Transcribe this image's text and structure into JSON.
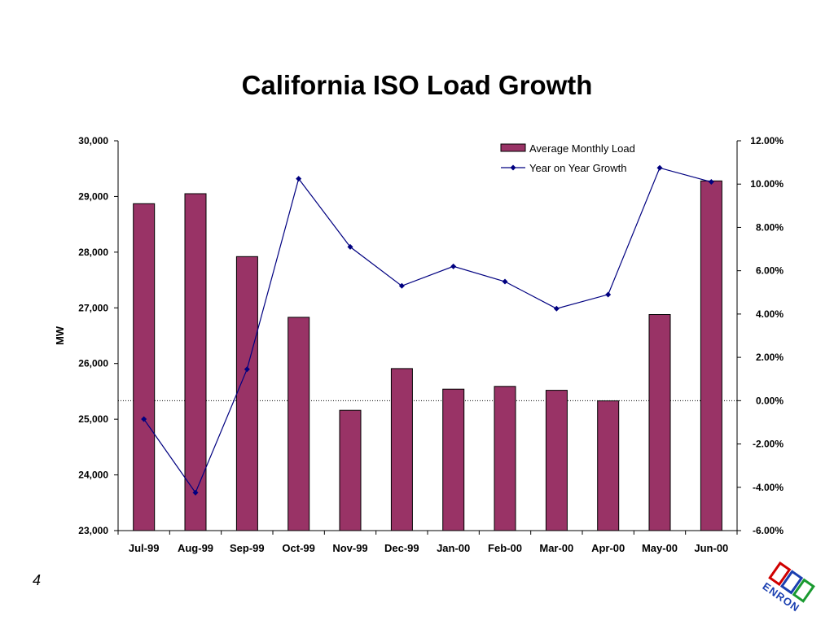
{
  "slide": {
    "title": "California ISO Load Growth",
    "page_number": "4",
    "logo_text": "ENRON"
  },
  "chart_data": {
    "type": "bar",
    "title": "California ISO Load Growth",
    "categories": [
      "Jul-99",
      "Aug-99",
      "Sep-99",
      "Oct-99",
      "Nov-99",
      "Dec-99",
      "Jan-00",
      "Feb-00",
      "Mar-00",
      "Apr-00",
      "May-00",
      "Jun-00"
    ],
    "ylabel": "MW",
    "ylim": [
      23000,
      30000
    ],
    "y_ticks": [
      "23,000",
      "24,000",
      "25,000",
      "26,000",
      "27,000",
      "28,000",
      "29,000",
      "30,000"
    ],
    "y2lim": [
      -6,
      12
    ],
    "y2_ticks": [
      "-6.00%",
      "-4.00%",
      "-2.00%",
      "0.00%",
      "2.00%",
      "4.00%",
      "6.00%",
      "8.00%",
      "10.00%",
      "12.00%"
    ],
    "series": [
      {
        "name": "Average Monthly Load",
        "type": "bar",
        "axis": "left",
        "color": "#993366",
        "values": [
          28870,
          29050,
          27920,
          26830,
          25160,
          25910,
          25540,
          25590,
          25520,
          25330,
          26880,
          29280
        ]
      },
      {
        "name": "Year on Year Growth",
        "type": "line",
        "axis": "right",
        "color": "#000080",
        "marker": "diamond",
        "values": [
          -0.85,
          -4.25,
          1.45,
          10.25,
          7.1,
          5.3,
          6.2,
          5.5,
          4.25,
          4.9,
          10.75,
          10.1
        ]
      }
    ],
    "reference_line": {
      "axis": "right",
      "value": 0,
      "style": "dotted"
    },
    "legend": "top-right",
    "grid": false
  }
}
